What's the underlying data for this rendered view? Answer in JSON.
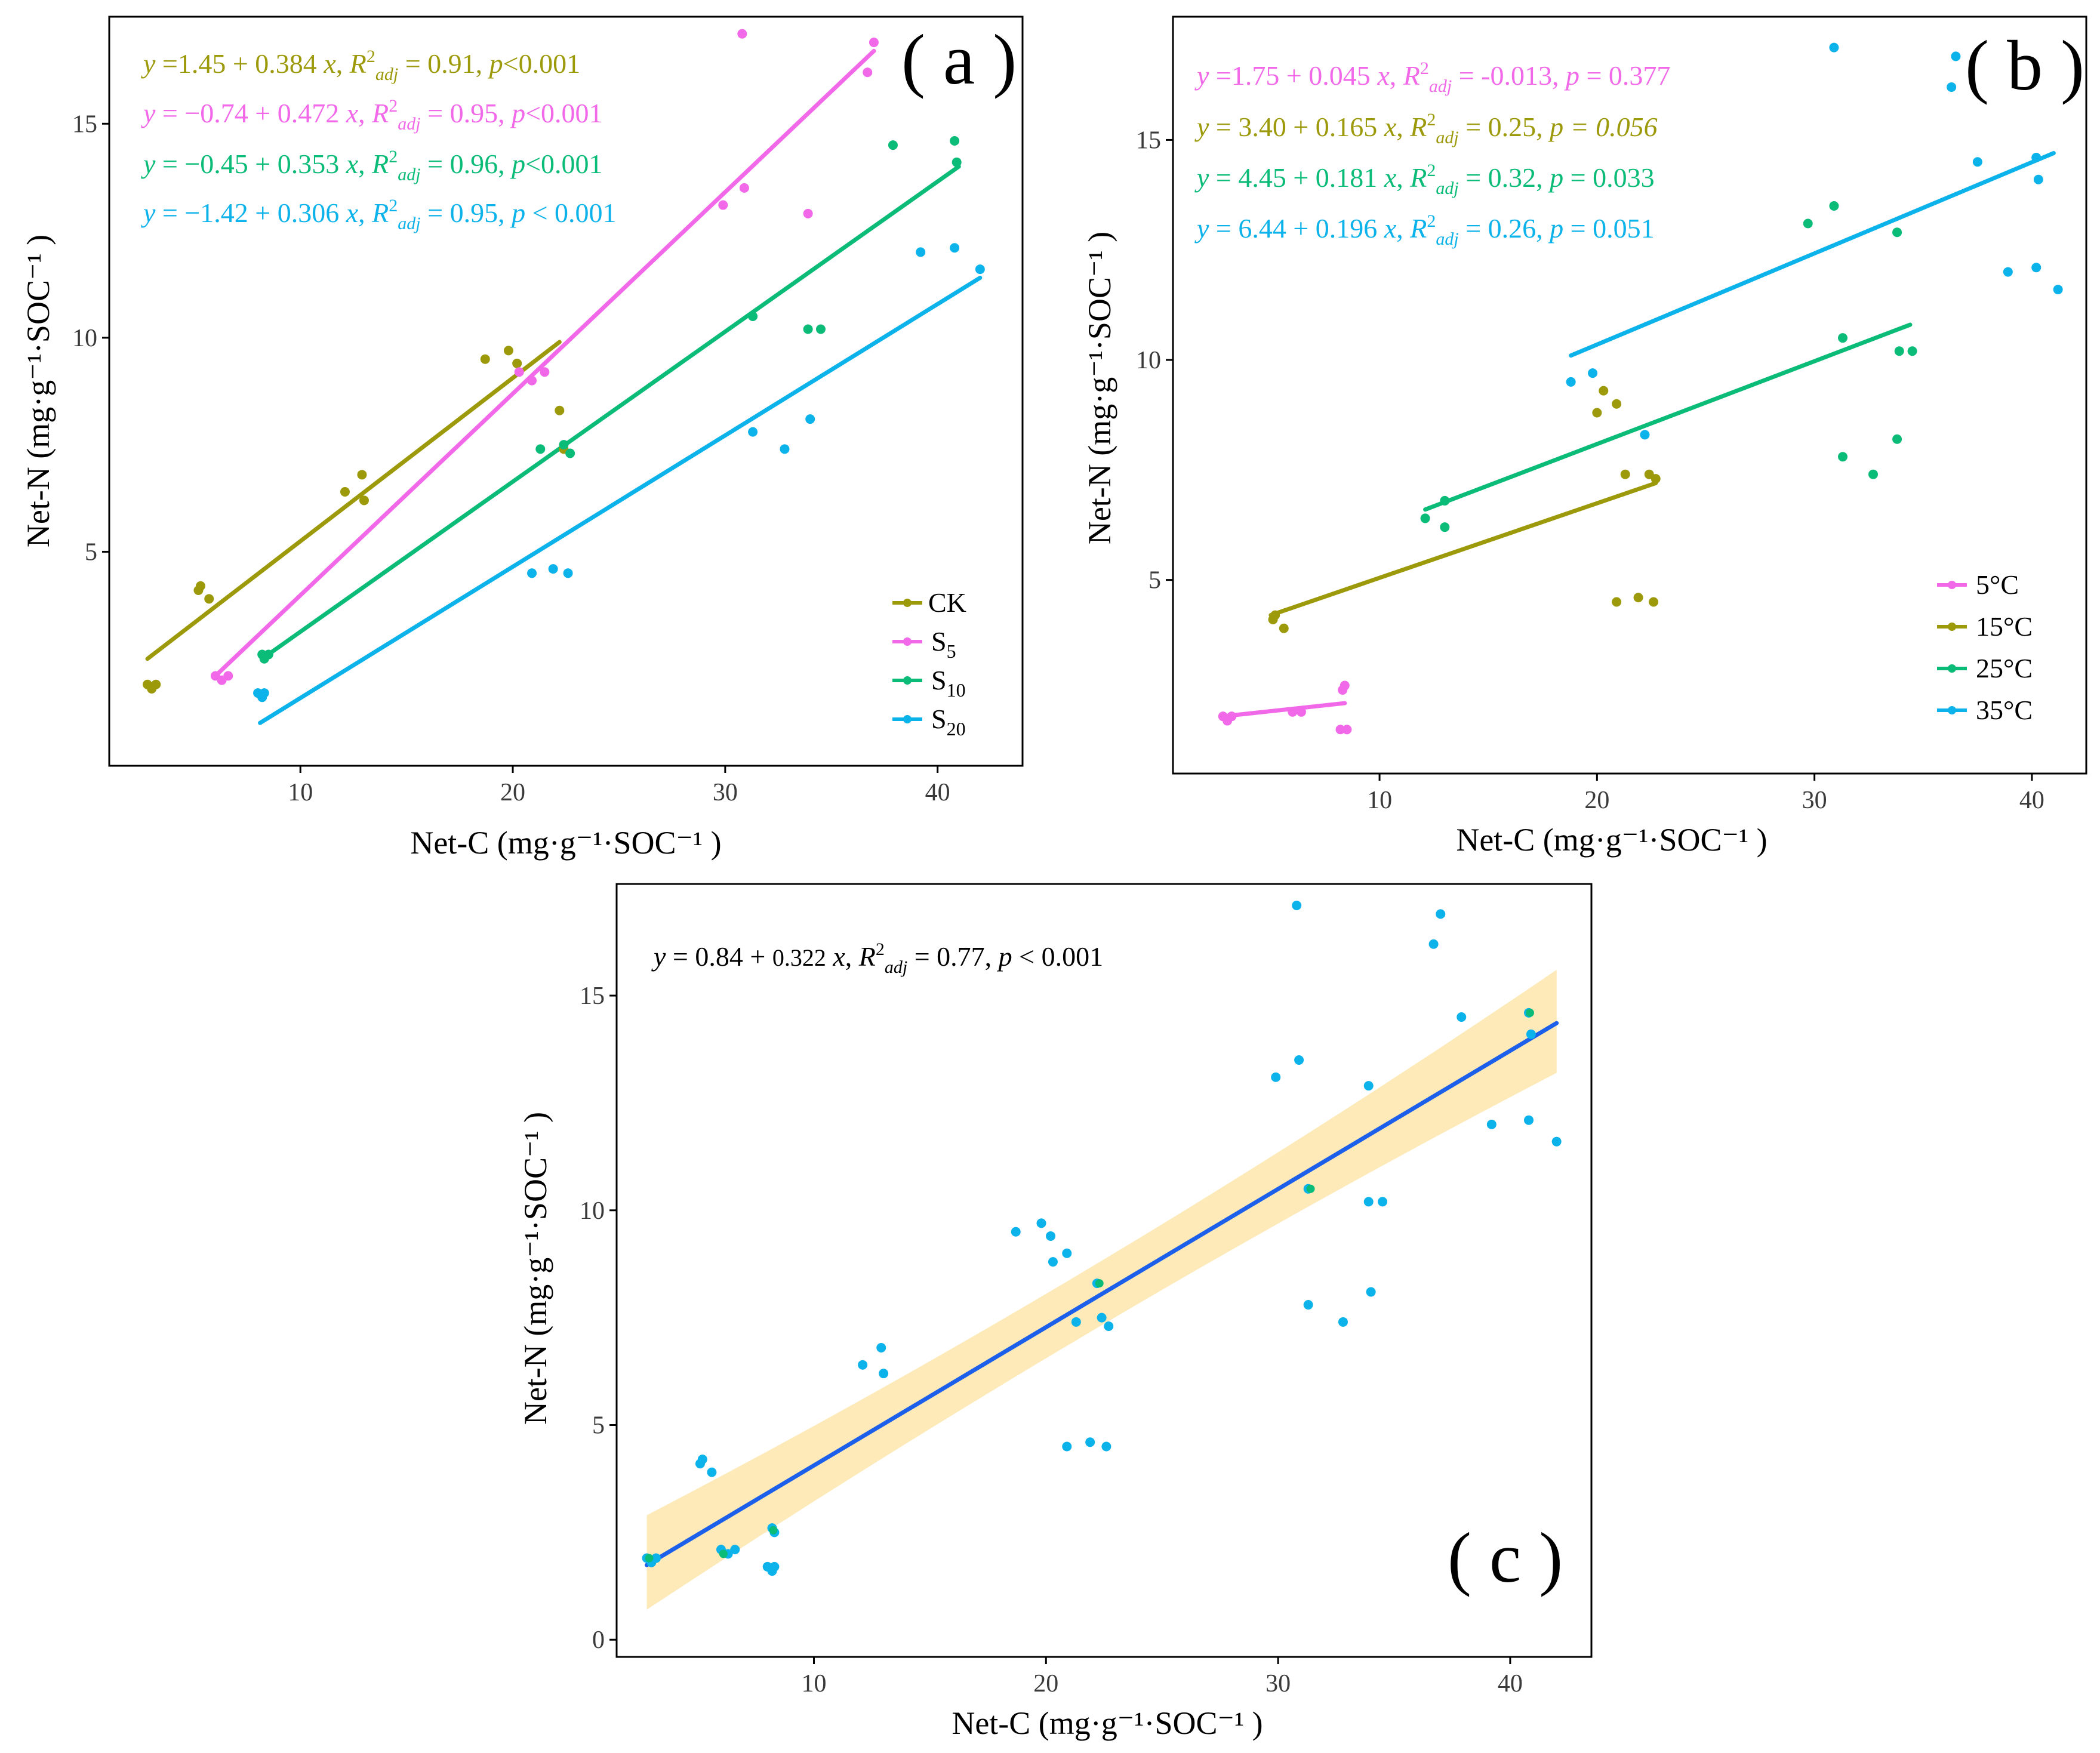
{
  "chart_data": [
    {
      "panel": "a",
      "type": "scatter",
      "label": "( a )",
      "xlabel": "Net-C (mg·g⁻¹·SOC⁻¹ )",
      "ylabel": "Net-N (mg·g⁻¹·SOC⁻¹ )",
      "xlim": [
        1,
        44
      ],
      "ylim": [
        0,
        17.5
      ],
      "xticks": [
        10,
        20,
        30,
        40
      ],
      "yticks": [
        5,
        10,
        15
      ],
      "legend_position": "bottom-right",
      "series": [
        {
          "name": "CK",
          "color": "#9c9a0a",
          "equation": "y =1.45 + 0.384 x, R²adj = 0.91, p<0.001",
          "fit": [
            [
              2.8,
              2.5
            ],
            [
              22.2,
              9.9
            ]
          ],
          "points": [
            [
              2.8,
              1.9
            ],
            [
              3.0,
              1.8
            ],
            [
              3.2,
              1.9
            ],
            [
              5.2,
              4.1
            ],
            [
              5.3,
              4.2
            ],
            [
              5.7,
              3.9
            ],
            [
              12.1,
              6.4
            ],
            [
              12.9,
              6.8
            ],
            [
              13.0,
              6.2
            ],
            [
              18.7,
              9.5
            ],
            [
              19.8,
              9.7
            ],
            [
              20.2,
              9.4
            ],
            [
              22.2,
              8.3
            ],
            [
              22.4,
              7.4
            ]
          ]
        },
        {
          "name": "S5",
          "color": "#f169e8",
          "equation": "y = −0.74 + 0.472 x, R²adj = 0.95, p<0.001",
          "fit": [
            [
              6.0,
              2.1
            ],
            [
              37.0,
              16.7
            ]
          ],
          "points": [
            [
              6.0,
              2.1
            ],
            [
              6.3,
              2.0
            ],
            [
              6.6,
              2.1
            ],
            [
              20.3,
              9.2
            ],
            [
              20.9,
              9.0
            ],
            [
              21.5,
              9.2
            ],
            [
              29.9,
              13.1
            ],
            [
              30.9,
              13.5
            ],
            [
              30.8,
              17.1
            ],
            [
              33.9,
              12.9
            ],
            [
              36.7,
              16.2
            ],
            [
              37.0,
              16.9
            ]
          ]
        },
        {
          "name": "S10",
          "color": "#0bbb78",
          "equation": "y = −0.45 + 0.353 x, R²adj = 0.96, p<0.001",
          "fit": [
            [
              8.2,
              2.5
            ],
            [
              41.0,
              14.0
            ]
          ],
          "points": [
            [
              8.2,
              2.6
            ],
            [
              8.3,
              2.5
            ],
            [
              8.5,
              2.6
            ],
            [
              21.3,
              7.4
            ],
            [
              22.4,
              7.5
            ],
            [
              22.7,
              7.3
            ],
            [
              31.3,
              10.5
            ],
            [
              33.9,
              10.2
            ],
            [
              34.5,
              10.2
            ],
            [
              37.9,
              14.5
            ],
            [
              40.8,
              14.6
            ],
            [
              40.9,
              14.1
            ]
          ]
        },
        {
          "name": "S20",
          "color": "#0cb2ea",
          "equation": "y = −1.42 + 0.306 x, R²adj = 0.95, p < 0.001",
          "fit": [
            [
              8.1,
              1.0
            ],
            [
              42.0,
              11.4
            ]
          ],
          "points": [
            [
              8.0,
              1.7
            ],
            [
              8.2,
              1.6
            ],
            [
              8.3,
              1.7
            ],
            [
              20.9,
              4.5
            ],
            [
              21.9,
              4.6
            ],
            [
              22.6,
              4.5
            ],
            [
              31.3,
              7.8
            ],
            [
              32.8,
              7.4
            ],
            [
              34.0,
              8.1
            ],
            [
              39.2,
              12.0
            ],
            [
              40.8,
              12.1
            ],
            [
              42.0,
              11.6
            ]
          ]
        }
      ]
    },
    {
      "panel": "b",
      "type": "scatter",
      "label": "( b )",
      "xlabel": "Net-C (mg·g⁻¹·SOC⁻¹ )",
      "ylabel": "Net-N (mg·g⁻¹·SOC⁻¹ )",
      "xlim": [
        0.5,
        42.5
      ],
      "ylim": [
        0.6,
        17.8
      ],
      "xticks": [
        10,
        20,
        30,
        40
      ],
      "yticks": [
        5,
        10,
        15
      ],
      "legend_position": "bottom-right",
      "series": [
        {
          "name": "5°C",
          "color": "#f169e8",
          "equation": "y =1.75 + 0.045 x, R²adj = -0.013, p = 0.377",
          "fit": [
            [
              2.8,
              1.9
            ],
            [
              8.4,
              2.2
            ]
          ],
          "points": [
            [
              2.8,
              1.9
            ],
            [
              3.0,
              1.8
            ],
            [
              3.2,
              1.9
            ],
            [
              6.0,
              2.0
            ],
            [
              6.4,
              2.0
            ],
            [
              8.2,
              1.6
            ],
            [
              8.3,
              2.5
            ],
            [
              8.4,
              2.6
            ],
            [
              8.5,
              1.6
            ]
          ]
        },
        {
          "name": "15°C",
          "color": "#9c9a0a",
          "equation": "y = 3.40 + 0.165 x, R²adj = 0.25, p = 0.056",
          "fit": [
            [
              5.0,
              4.2
            ],
            [
              22.7,
              7.2
            ]
          ],
          "points": [
            [
              5.1,
              4.1
            ],
            [
              5.2,
              4.2
            ],
            [
              5.6,
              3.9
            ],
            [
              20.0,
              8.8
            ],
            [
              20.3,
              9.3
            ],
            [
              20.9,
              9.0
            ],
            [
              21.3,
              7.4
            ],
            [
              22.4,
              7.4
            ],
            [
              22.7,
              7.3
            ],
            [
              20.9,
              4.5
            ],
            [
              21.9,
              4.6
            ],
            [
              22.6,
              4.5
            ]
          ]
        },
        {
          "name": "25°C",
          "color": "#0bbb78",
          "equation": "y = 4.45 + 0.181 x, R²adj = 0.32, p = 0.033",
          "fit": [
            [
              12.1,
              6.6
            ],
            [
              34.4,
              10.8
            ]
          ],
          "points": [
            [
              12.1,
              6.4
            ],
            [
              13.0,
              6.8
            ],
            [
              13.0,
              6.2
            ],
            [
              29.7,
              13.1
            ],
            [
              30.9,
              13.5
            ],
            [
              33.8,
              12.9
            ],
            [
              31.3,
              10.5
            ],
            [
              33.9,
              10.2
            ],
            [
              34.5,
              10.2
            ],
            [
              31.3,
              7.8
            ],
            [
              32.7,
              7.4
            ],
            [
              33.8,
              8.2
            ]
          ]
        },
        {
          "name": "35°C",
          "color": "#0cb2ea",
          "equation": "y = 6.44 + 0.196 x, R²adj = 0.26, p = 0.051",
          "fit": [
            [
              18.8,
              10.1
            ],
            [
              41.0,
              14.7
            ]
          ],
          "points": [
            [
              18.8,
              9.5
            ],
            [
              19.8,
              9.7
            ],
            [
              22.2,
              8.3
            ],
            [
              30.9,
              17.1
            ],
            [
              36.3,
              16.2
            ],
            [
              36.5,
              16.9
            ],
            [
              37.5,
              14.5
            ],
            [
              40.2,
              14.6
            ],
            [
              40.3,
              14.1
            ],
            [
              38.9,
              12.0
            ],
            [
              40.2,
              12.1
            ],
            [
              41.2,
              11.6
            ]
          ]
        }
      ]
    },
    {
      "panel": "c",
      "type": "scatter",
      "label": "( c )",
      "xlabel": "Net-C (mg·g⁻¹·SOC⁻¹ )",
      "ylabel": "Net-N (mg·g⁻¹·SOC⁻¹ )",
      "xlim": [
        1.5,
        43.5
      ],
      "ylim": [
        -0.4,
        17.6
      ],
      "xticks": [
        10,
        20,
        30,
        40
      ],
      "yticks": [
        0,
        5,
        10,
        15
      ],
      "equation": "y = 0.84 + 0.322 x, R²adj = 0.77, p < 0.001",
      "fit": {
        "x": [
          2.8,
          42.0
        ],
        "y": [
          1.74,
          14.36
        ]
      },
      "ci_band": {
        "x": [
          2.8,
          42.0
        ],
        "lower": [
          0.7,
          13.2
        ],
        "upper": [
          2.9,
          15.6
        ],
        "color": "#fdeab8"
      },
      "line_color": "#1c5fea",
      "points_primary_color": "#0cb2ea",
      "points_secondary_color": "#0bbb78",
      "points": [
        [
          2.8,
          1.9
        ],
        [
          3.0,
          1.8
        ],
        [
          3.2,
          1.9
        ],
        [
          5.1,
          4.1
        ],
        [
          5.2,
          4.2
        ],
        [
          5.6,
          3.9
        ],
        [
          6.0,
          2.1
        ],
        [
          6.3,
          2.0
        ],
        [
          6.6,
          2.1
        ],
        [
          8.0,
          1.7
        ],
        [
          8.2,
          1.6
        ],
        [
          8.3,
          1.7
        ],
        [
          8.2,
          2.6
        ],
        [
          8.3,
          2.5
        ],
        [
          12.1,
          6.4
        ],
        [
          12.9,
          6.8
        ],
        [
          13.0,
          6.2
        ],
        [
          18.7,
          9.5
        ],
        [
          19.8,
          9.7
        ],
        [
          20.2,
          9.4
        ],
        [
          20.3,
          8.8
        ],
        [
          20.9,
          9.0
        ],
        [
          20.9,
          4.5
        ],
        [
          21.9,
          4.6
        ],
        [
          22.6,
          4.5
        ],
        [
          21.3,
          7.4
        ],
        [
          22.2,
          8.3
        ],
        [
          22.4,
          7.5
        ],
        [
          22.7,
          7.3
        ],
        [
          29.9,
          13.1
        ],
        [
          30.9,
          13.5
        ],
        [
          30.8,
          17.1
        ],
        [
          31.3,
          10.5
        ],
        [
          31.3,
          7.8
        ],
        [
          32.8,
          7.4
        ],
        [
          34.0,
          8.1
        ],
        [
          33.9,
          12.9
        ],
        [
          33.9,
          10.2
        ],
        [
          34.5,
          10.2
        ],
        [
          36.7,
          16.2
        ],
        [
          37.0,
          16.9
        ],
        [
          37.9,
          14.5
        ],
        [
          39.2,
          12.0
        ],
        [
          40.8,
          14.6
        ],
        [
          40.8,
          12.1
        ],
        [
          40.9,
          14.1
        ],
        [
          42.0,
          11.6
        ]
      ],
      "secondary_points": [
        [
          2.9,
          1.9
        ],
        [
          6.1,
          2.0
        ],
        [
          8.25,
          2.55
        ],
        [
          22.3,
          8.3
        ],
        [
          31.4,
          10.5
        ],
        [
          40.85,
          14.6
        ]
      ]
    }
  ]
}
